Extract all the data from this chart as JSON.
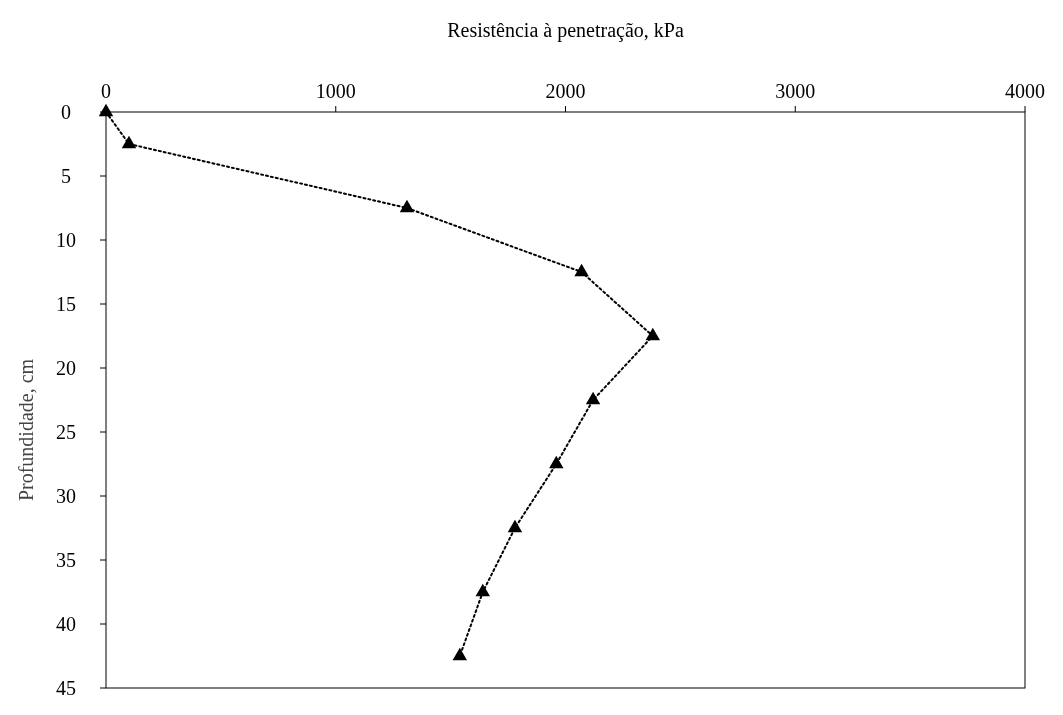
{
  "chart_data": {
    "type": "line",
    "xlabel": "Resistência  à penetração, kPa",
    "ylabel": "Profundidade,  cm",
    "x": [
      0,
      100,
      1310,
      2070,
      2380,
      2120,
      1960,
      1780,
      1640,
      1540
    ],
    "series": [
      {
        "color": "#000000",
        "values": [
          0,
          2.5,
          7.5,
          12.5,
          17.5,
          22.5,
          27.5,
          32.5,
          37.5,
          42.5
        ]
      }
    ],
    "xlim": [
      0,
      4000
    ],
    "xticks": [
      0,
      1000,
      2000,
      3000,
      4000
    ],
    "ylim": [
      45,
      0
    ],
    "yticks": [
      0,
      5,
      10,
      15,
      20,
      25,
      30,
      35,
      40,
      45
    ],
    "marker": "triangle",
    "line_style": "dotted"
  }
}
